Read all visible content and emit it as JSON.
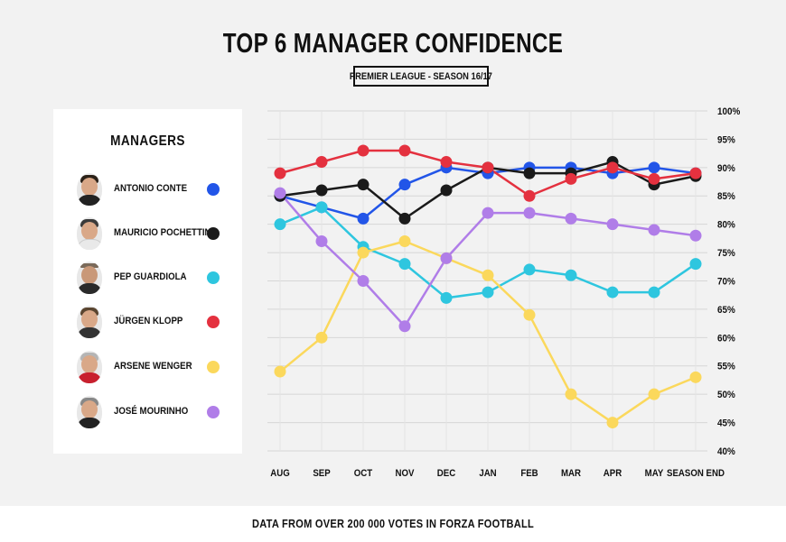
{
  "header": {
    "title": "TOP 6 MANAGER CONFIDENCE",
    "subtitle": "PREMIER LEAGUE - SEASON 16/17"
  },
  "legend": {
    "title": "MANAGERS",
    "items": [
      {
        "name": "ANTONIO CONTE",
        "color": "#2255e8",
        "icon": "manager-photo"
      },
      {
        "name": "MAURICIO POCHETTINO",
        "color": "#1a1a1a",
        "icon": "manager-photo"
      },
      {
        "name": "PEP GUARDIOLA",
        "color": "#2ec6df",
        "icon": "manager-photo"
      },
      {
        "name": "JÜRGEN KLOPP",
        "color": "#e4313f",
        "icon": "manager-photo"
      },
      {
        "name": "ARSENE WENGER",
        "color": "#fbd85c",
        "icon": "manager-photo"
      },
      {
        "name": "JOSÉ MOURINHO",
        "color": "#b07de8",
        "icon": "manager-photo"
      }
    ]
  },
  "footer": {
    "note": "DATA FROM OVER 200 000 VOTES IN FORZA FOOTBALL"
  },
  "chart_data": {
    "type": "line",
    "x": [
      "AUG",
      "SEP",
      "OCT",
      "NOV",
      "DEC",
      "JAN",
      "FEB",
      "MAR",
      "APR",
      "MAY",
      "SEASON END"
    ],
    "ylim": [
      40,
      100
    ],
    "yticks": [
      "40%",
      "45%",
      "50%",
      "55%",
      "60%",
      "65%",
      "70%",
      "75%",
      "80%",
      "85%",
      "90%",
      "95%",
      "100%"
    ],
    "grid": true,
    "legend_position": "left",
    "series": [
      {
        "name": "ANTONIO CONTE",
        "color": "#2255e8",
        "values": [
          85,
          83,
          81,
          87,
          90,
          89,
          90,
          90,
          89,
          90,
          89
        ]
      },
      {
        "name": "MAURICIO POCHETTINO",
        "color": "#1a1a1a",
        "values": [
          85,
          86,
          87,
          81,
          86,
          90,
          89,
          89,
          91,
          87,
          88.5
        ]
      },
      {
        "name": "PEP GUARDIOLA",
        "color": "#2ec6df",
        "values": [
          80,
          83,
          76,
          73,
          67,
          68,
          72,
          71,
          68,
          68,
          73
        ]
      },
      {
        "name": "JÜRGEN KLOPP",
        "color": "#e4313f",
        "values": [
          89,
          91,
          93,
          93,
          91,
          90,
          85,
          88,
          90,
          88,
          89
        ]
      },
      {
        "name": "ARSENE WENGER",
        "color": "#fbd85c",
        "values": [
          54,
          60,
          75,
          77,
          74,
          71,
          64,
          50,
          45,
          50,
          53
        ]
      },
      {
        "name": "JOSÉ MOURINHO",
        "color": "#b07de8",
        "values": [
          85.5,
          77,
          70,
          62,
          74,
          82,
          82,
          81,
          80,
          79,
          78
        ]
      }
    ]
  }
}
